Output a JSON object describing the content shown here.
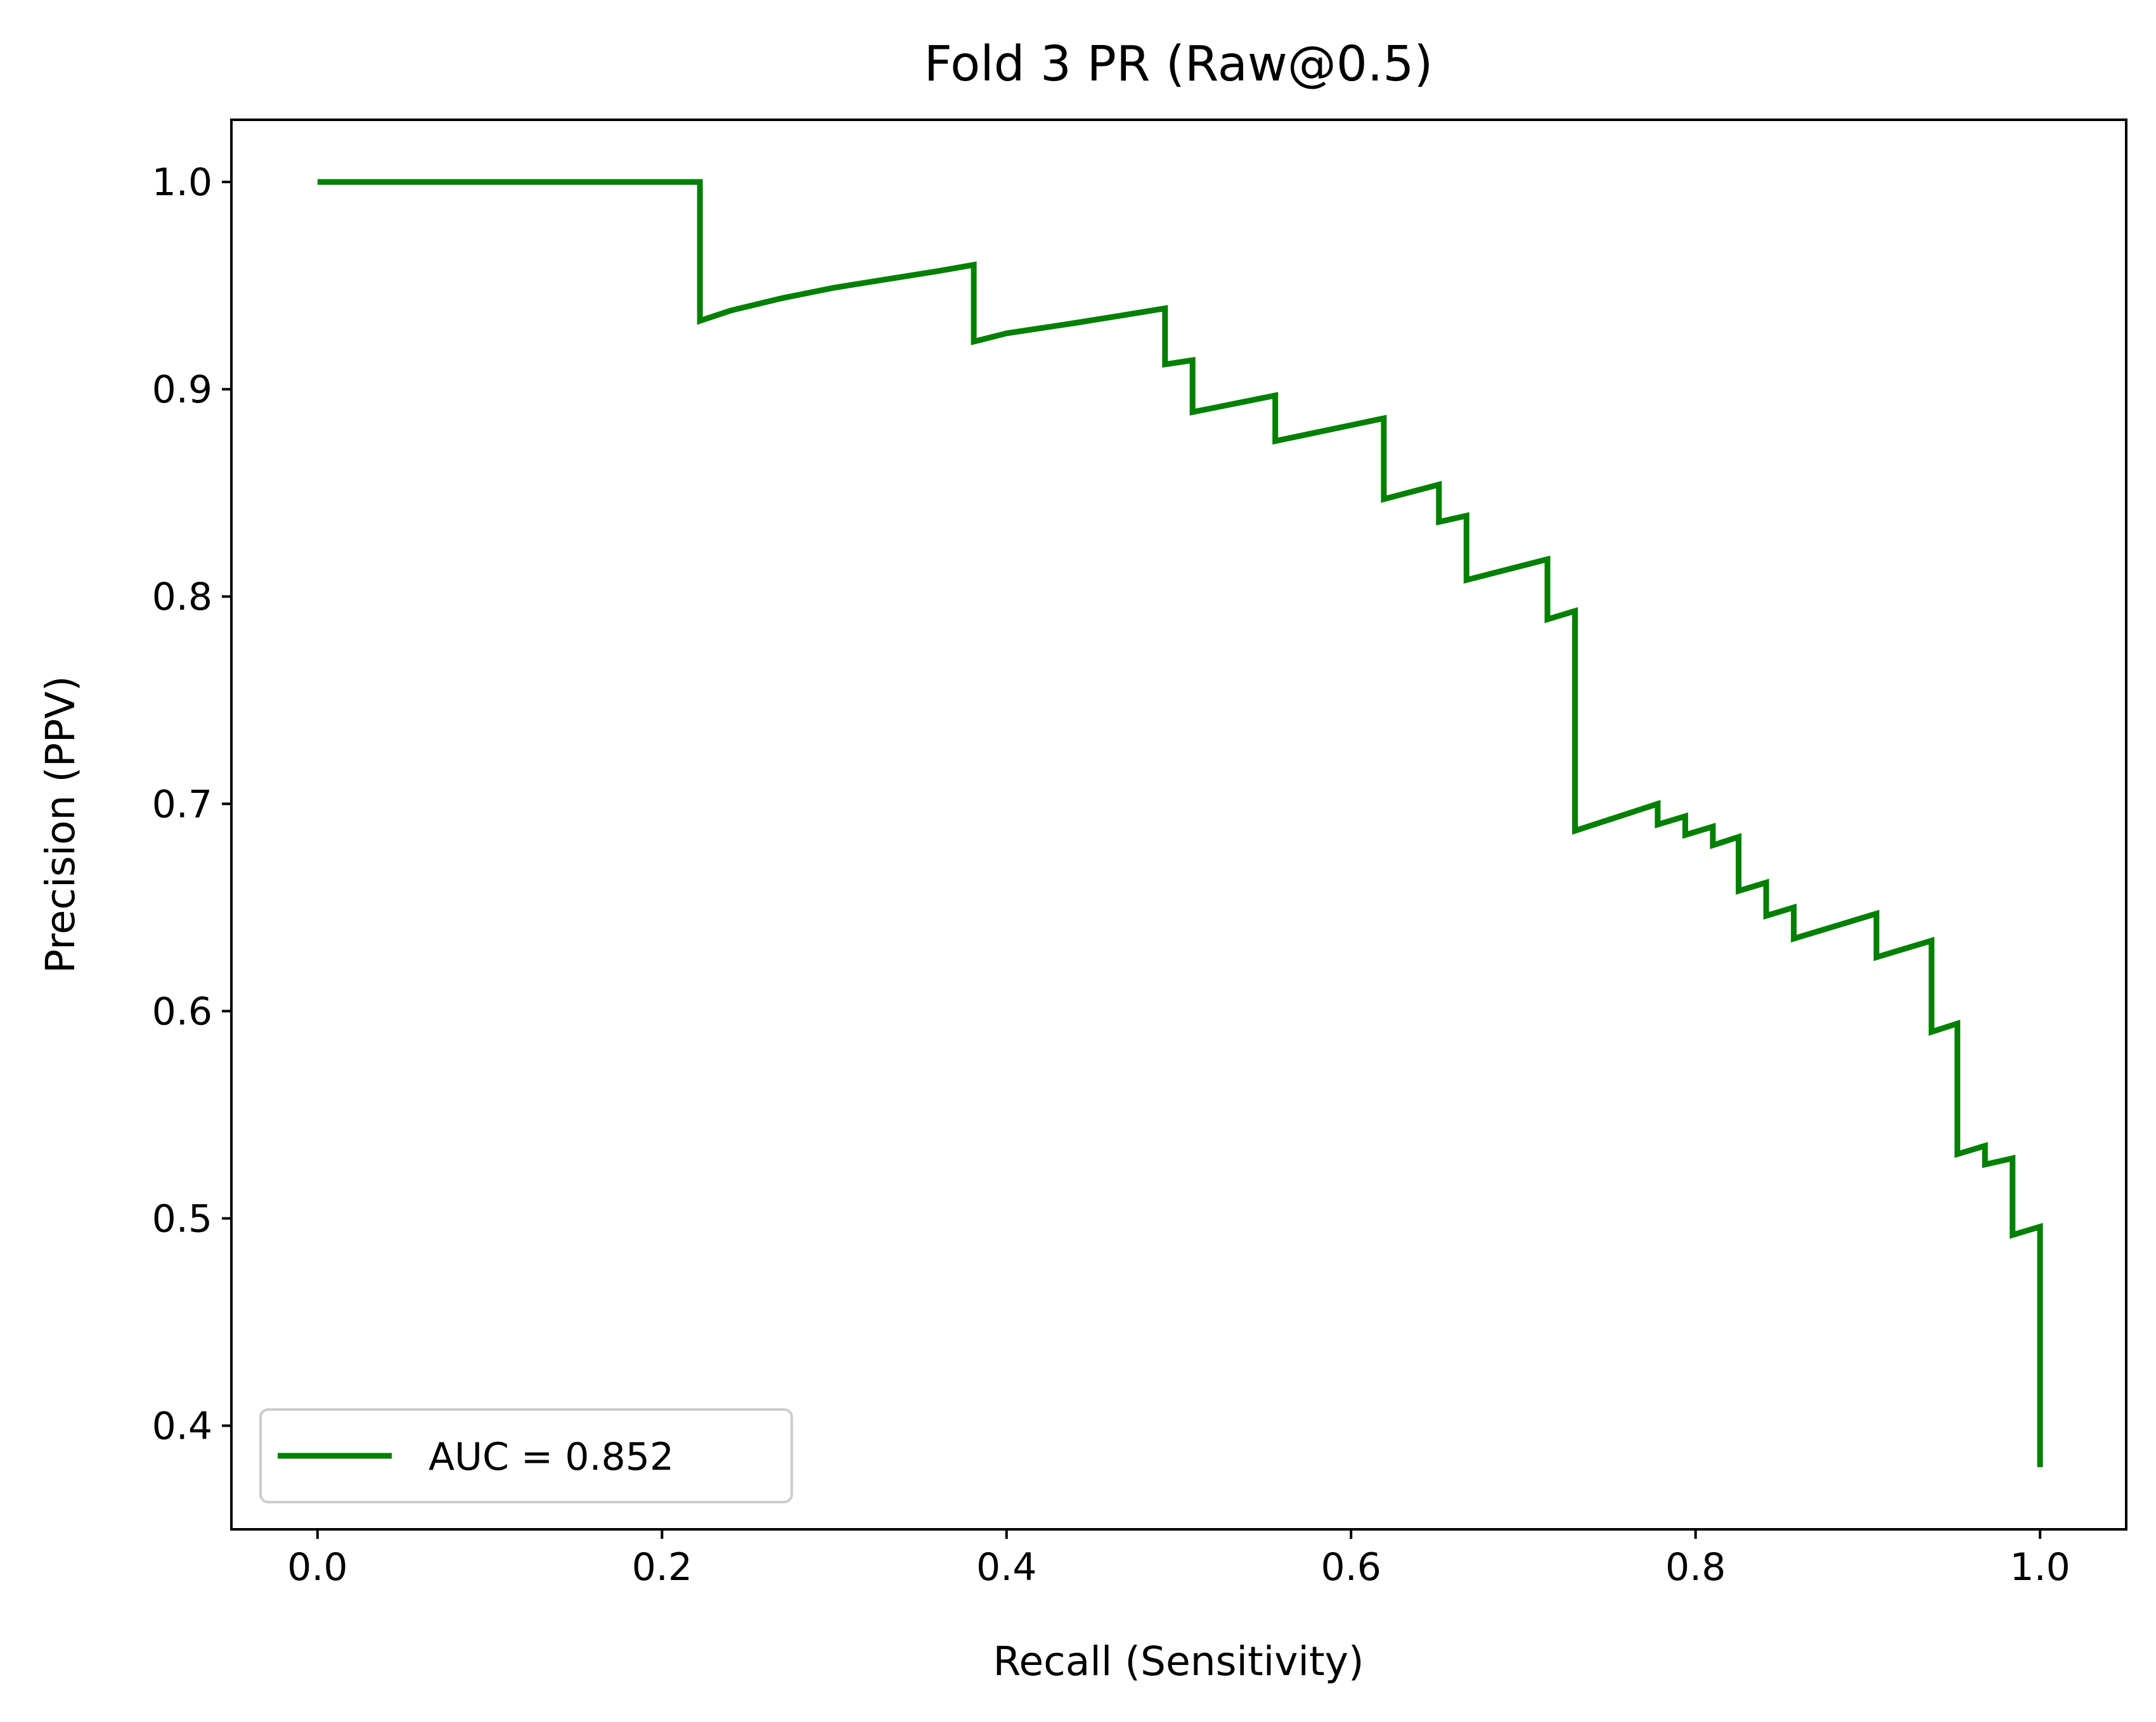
{
  "chart_data": {
    "type": "line",
    "title": "Fold 3 PR (Raw@0.5)",
    "xlabel": "Recall (Sensitivity)",
    "ylabel": "Precision (PPV)",
    "xlim": [
      -0.05,
      1.05
    ],
    "ylim": [
      0.35,
      1.03
    ],
    "xticks": [
      0.0,
      0.2,
      0.4,
      0.6,
      0.8,
      1.0
    ],
    "xtick_labels": [
      "0.0",
      "0.2",
      "0.4",
      "0.6",
      "0.8",
      "1.0"
    ],
    "yticks": [
      0.4,
      0.5,
      0.6,
      0.7,
      0.8,
      0.9,
      1.0
    ],
    "ytick_labels": [
      "0.4",
      "0.5",
      "0.6",
      "0.7",
      "0.8",
      "0.9",
      "1.0"
    ],
    "grid": false,
    "legend_position": "lower-left",
    "series": [
      {
        "name": "AUC = 0.852",
        "color": "#008000",
        "x": [
          0.0,
          0.222,
          0.222,
          0.24,
          0.27,
          0.3,
          0.33,
          0.36,
          0.381,
          0.381,
          0.4,
          0.44,
          0.492,
          0.492,
          0.508,
          0.508,
          0.556,
          0.556,
          0.619,
          0.619,
          0.651,
          0.651,
          0.667,
          0.667,
          0.714,
          0.714,
          0.73,
          0.73,
          0.778,
          0.778,
          0.794,
          0.794,
          0.81,
          0.81,
          0.825,
          0.825,
          0.841,
          0.841,
          0.857,
          0.857,
          0.905,
          0.905,
          0.937,
          0.937,
          0.952,
          0.952,
          0.968,
          0.968,
          0.984,
          0.984,
          1.0,
          1.0
        ],
        "y": [
          1.0,
          1.0,
          0.933,
          0.938,
          0.944,
          0.949,
          0.953,
          0.957,
          0.96,
          0.923,
          0.927,
          0.932,
          0.939,
          0.912,
          0.914,
          0.889,
          0.897,
          0.875,
          0.886,
          0.847,
          0.854,
          0.836,
          0.839,
          0.808,
          0.818,
          0.789,
          0.793,
          0.687,
          0.7,
          0.69,
          0.694,
          0.685,
          0.689,
          0.68,
          0.684,
          0.658,
          0.662,
          0.646,
          0.65,
          0.635,
          0.647,
          0.626,
          0.634,
          0.59,
          0.594,
          0.531,
          0.535,
          0.526,
          0.529,
          0.492,
          0.496,
          0.38
        ]
      }
    ]
  }
}
